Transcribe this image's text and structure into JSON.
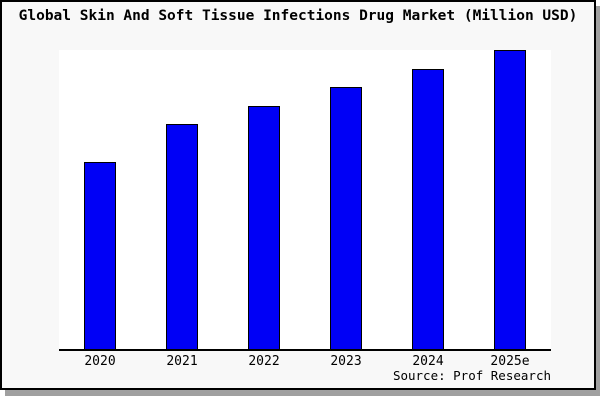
{
  "chart_data": {
    "type": "bar",
    "title": "Global Skin And Soft Tissue Infections Drug Market (Million USD)",
    "categories": [
      "2020",
      "2021",
      "2022",
      "2023",
      "2024",
      "2025e"
    ],
    "values": [
      62.5,
      75.2,
      81.4,
      87.5,
      93.6,
      99.9
    ],
    "values_estimated_relative": true,
    "xlabel": "",
    "ylabel": "",
    "ylim": [
      0,
      100
    ],
    "grid": false,
    "legend": null,
    "yaxis_visible": false,
    "source": "Source: Prof Research"
  },
  "colors": {
    "bar_fill": "#0000f6",
    "bar_border": "#000000",
    "frame_background": "#f8f8f8",
    "plot_background": "#ffffff",
    "frame_border": "#000000",
    "shadow": "#a0a0a0",
    "text": "#000000"
  }
}
